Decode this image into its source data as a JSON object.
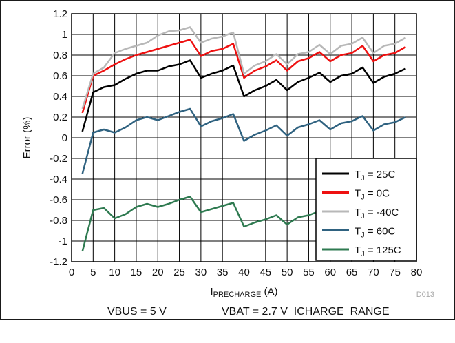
{
  "chart_data": {
    "type": "line",
    "title": "",
    "xlabel_main": "I",
    "xlabel_sub": "PRECHARGE",
    "xlabel_unit": " (A)",
    "ylabel": "Error (%)",
    "xlim": [
      0,
      80
    ],
    "ylim": [
      -1.2,
      1.2
    ],
    "xticks": [
      0,
      5,
      10,
      15,
      20,
      25,
      30,
      35,
      40,
      45,
      50,
      55,
      60,
      65,
      70,
      75,
      80
    ],
    "xtick_labels": [
      "0",
      "5",
      "10",
      "15",
      "20",
      "25",
      "30",
      "35",
      "40",
      "45",
      "50",
      "55",
      "60",
      "65",
      "70",
      "75",
      "80"
    ],
    "yticks": [
      1.2,
      1,
      0.8,
      0.6,
      0.4,
      0.2,
      0,
      -0.2,
      -0.4,
      -0.6,
      -0.8,
      -1,
      -1.2
    ],
    "ytick_labels": [
      "1.2",
      "1",
      "0.8",
      "0.6",
      "0.4",
      "0.2",
      "0",
      "-0.2",
      "-0.4",
      "-0.6",
      "-0.8",
      "-1",
      "-1.2"
    ],
    "grid": true,
    "legend_position": "bottom-right",
    "x": [
      2.5,
      5,
      7.5,
      10,
      12.5,
      15,
      17.5,
      20,
      22.5,
      25,
      27.5,
      30,
      32.5,
      35,
      37.5,
      40,
      42.5,
      45,
      47.5,
      50,
      52.5,
      55,
      57.5,
      60,
      62.5,
      65,
      67.5,
      70,
      72.5,
      75,
      77.5
    ],
    "series": [
      {
        "name_main": "T",
        "name_sub": "J",
        "name_rest": " = 25C",
        "color": "#000000",
        "values": [
          0.06,
          0.44,
          0.49,
          0.51,
          0.57,
          0.62,
          0.65,
          0.65,
          0.69,
          0.71,
          0.75,
          0.58,
          0.62,
          0.65,
          0.7,
          0.4,
          0.46,
          0.5,
          0.56,
          0.46,
          0.54,
          0.58,
          0.63,
          0.54,
          0.6,
          0.62,
          0.68,
          0.53,
          0.59,
          0.62,
          0.67
        ]
      },
      {
        "name_main": "T",
        "name_sub": "J",
        "name_rest": " = 0C",
        "color": "#ee1111",
        "values": [
          0.24,
          0.6,
          0.65,
          0.71,
          0.76,
          0.8,
          0.83,
          0.86,
          0.89,
          0.92,
          0.95,
          0.79,
          0.84,
          0.86,
          0.91,
          0.58,
          0.65,
          0.69,
          0.75,
          0.65,
          0.74,
          0.77,
          0.83,
          0.74,
          0.8,
          0.82,
          0.89,
          0.74,
          0.8,
          0.82,
          0.88
        ]
      },
      {
        "name_main": "T",
        "name_sub": "J",
        "name_rest": " = -40C",
        "color": "#b8b8b8",
        "values": [
          0.28,
          0.62,
          0.68,
          0.82,
          0.86,
          0.89,
          0.92,
          0.99,
          1.03,
          1.04,
          1.07,
          0.92,
          0.96,
          0.98,
          1.02,
          0.62,
          0.7,
          0.74,
          0.81,
          0.71,
          0.81,
          0.83,
          0.9,
          0.81,
          0.89,
          0.91,
          0.97,
          0.82,
          0.89,
          0.91,
          0.97
        ]
      },
      {
        "name_main": "T",
        "name_sub": "J",
        "name_rest": " = 60C",
        "color": "#2f6280",
        "values": [
          -0.35,
          0.05,
          0.08,
          0.05,
          0.1,
          0.17,
          0.2,
          0.17,
          0.21,
          0.25,
          0.28,
          0.11,
          0.16,
          0.19,
          0.23,
          -0.03,
          0.03,
          0.07,
          0.12,
          0.02,
          0.1,
          0.13,
          0.17,
          0.08,
          0.14,
          0.16,
          0.21,
          0.07,
          0.13,
          0.15,
          0.2
        ]
      },
      {
        "name_main": "T",
        "name_sub": "J",
        "name_rest": " = 125C",
        "color": "#2e7a50",
        "values": [
          -1.1,
          -0.7,
          -0.68,
          -0.78,
          -0.74,
          -0.67,
          -0.64,
          -0.67,
          -0.64,
          -0.6,
          -0.57,
          -0.72,
          -0.69,
          -0.66,
          -0.63,
          -0.86,
          -0.82,
          -0.79,
          -0.75,
          -0.84,
          -0.77,
          -0.75,
          -0.71,
          -0.8,
          -0.73,
          -0.7,
          -0.66,
          -0.79,
          -0.72,
          -0.68,
          -0.65
        ]
      }
    ],
    "figure_id": "D013",
    "caption_left": "VBUS = 5 V",
    "caption_right": "VBAT = 2.7 V  ICHARGE  RANGE"
  }
}
